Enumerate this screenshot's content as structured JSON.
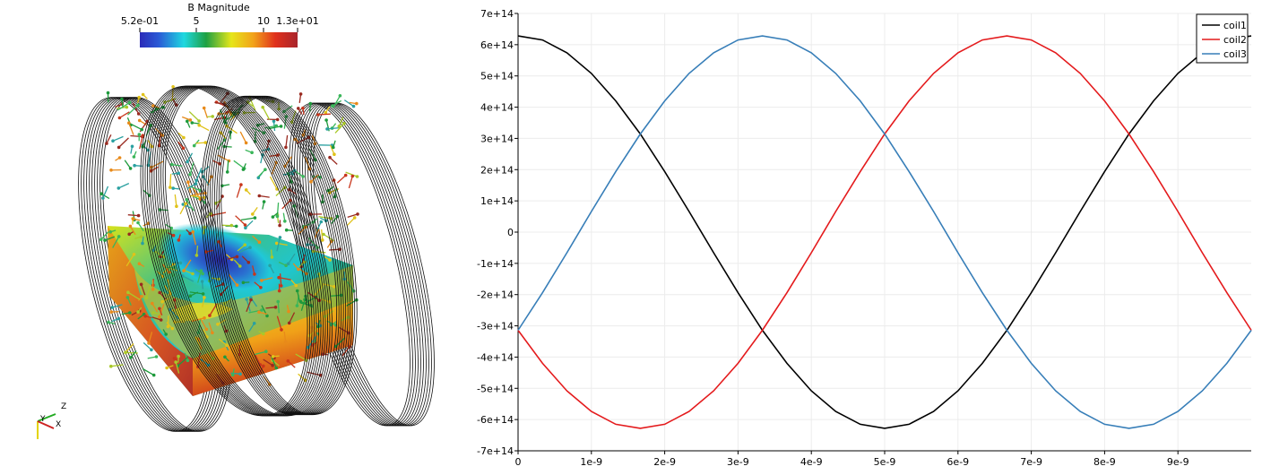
{
  "render_view": {
    "colorbar": {
      "title": "B Magnitude",
      "tick_labels": [
        "5.2e-01",
        "5",
        "10",
        "1.3e+01"
      ]
    },
    "axes_triad": {
      "z": "Z",
      "y": "Y",
      "x": "X"
    }
  },
  "chart_data": {
    "type": "line",
    "title": "",
    "xlabel": "",
    "ylabel": "",
    "xlim": [
      0,
      1e-08
    ],
    "ylim": [
      -700000000000000.0,
      700000000000000.0
    ],
    "grid": true,
    "legend_position": "top-right",
    "x_tick_labels": [
      "0",
      "1e-9",
      "2e-9",
      "3e-9",
      "4e-9",
      "5e-9",
      "6e-9",
      "7e-9",
      "8e-9",
      "9e-9"
    ],
    "x_ticks": [
      0,
      1e-09,
      2e-09,
      3e-09,
      4e-09,
      5e-09,
      6e-09,
      7e-09,
      8e-09,
      9e-09
    ],
    "y_tick_labels": [
      "7e+14",
      "6e+14",
      "5e+14",
      "4e+14",
      "3e+14",
      "2e+14",
      "1e+14",
      "0",
      "-1e+14",
      "-2e+14",
      "-3e+14",
      "-4e+14",
      "-5e+14",
      "-6e+14",
      "-7e+14"
    ],
    "y_ticks": [
      700000000000000.0,
      600000000000000.0,
      500000000000000.0,
      400000000000000.0,
      300000000000000.0,
      200000000000000.0,
      100000000000000.0,
      0,
      -100000000000000.0,
      -200000000000000.0,
      -300000000000000.0,
      -400000000000000.0,
      -500000000000000.0,
      -600000000000000.0,
      -700000000000000.0
    ],
    "x": [
      0,
      3.333e-10,
      6.667e-10,
      1e-09,
      1.333e-09,
      1.667e-09,
      2e-09,
      2.333e-09,
      2.667e-09,
      3e-09,
      3.333e-09,
      3.667e-09,
      4e-09,
      4.333e-09,
      4.667e-09,
      5e-09,
      5.333e-09,
      5.667e-09,
      6e-09,
      6.333e-09,
      6.667e-09,
      7e-09,
      7.333e-09,
      7.667e-09,
      8e-09,
      8.333e-09,
      8.667e-09,
      9e-09,
      9.333e-09,
      9.667e-09,
      1e-08
    ],
    "series": [
      {
        "name": "coil1",
        "color": "#000000",
        "values": [
          628000000000000.0,
          615000000000000.0,
          574000000000000.0,
          508000000000000.0,
          420000000000000.0,
          314000000000000.0,
          194000000000000.0,
          66000000000000.0,
          -66000000000000.0,
          -194000000000000.0,
          -314000000000000.0,
          -420000000000000.0,
          -508000000000000.0,
          -574000000000000.0,
          -615000000000000.0,
          -628000000000000.0,
          -615000000000000.0,
          -574000000000000.0,
          -508000000000000.0,
          -420000000000000.0,
          -314000000000000.0,
          -194000000000000.0,
          -66000000000000.0,
          66000000000000.0,
          194000000000000.0,
          314000000000000.0,
          420000000000000.0,
          508000000000000.0,
          574000000000000.0,
          615000000000000.0,
          628000000000000.0
        ]
      },
      {
        "name": "coil2",
        "color": "#e41a1c",
        "values": [
          -314000000000000.0,
          -420000000000000.0,
          -508000000000000.0,
          -574000000000000.0,
          -615000000000000.0,
          -628000000000000.0,
          -615000000000000.0,
          -574000000000000.0,
          -508000000000000.0,
          -420000000000000.0,
          -314000000000000.0,
          -194000000000000.0,
          -66000000000000.0,
          66000000000000.0,
          194000000000000.0,
          314000000000000.0,
          420000000000000.0,
          508000000000000.0,
          574000000000000.0,
          615000000000000.0,
          628000000000000.0,
          615000000000000.0,
          574000000000000.0,
          508000000000000.0,
          420000000000000.0,
          314000000000000.0,
          194000000000000.0,
          66000000000000.0,
          -66000000000000.0,
          -194000000000000.0,
          -314000000000000.0
        ]
      },
      {
        "name": "coil3",
        "color": "#377eb8",
        "values": [
          -314000000000000.0,
          -194000000000000.0,
          -66000000000000.0,
          66000000000000.0,
          194000000000000.0,
          314000000000000.0,
          420000000000000.0,
          508000000000000.0,
          574000000000000.0,
          615000000000000.0,
          628000000000000.0,
          615000000000000.0,
          574000000000000.0,
          508000000000000.0,
          420000000000000.0,
          314000000000000.0,
          194000000000000.0,
          66000000000000.0,
          -66000000000000.0,
          -194000000000000.0,
          -314000000000000.0,
          -420000000000000.0,
          -508000000000000.0,
          -574000000000000.0,
          -615000000000000.0,
          -628000000000000.0,
          -615000000000000.0,
          -574000000000000.0,
          -508000000000000.0,
          -420000000000000.0,
          -314000000000000.0
        ]
      }
    ]
  }
}
